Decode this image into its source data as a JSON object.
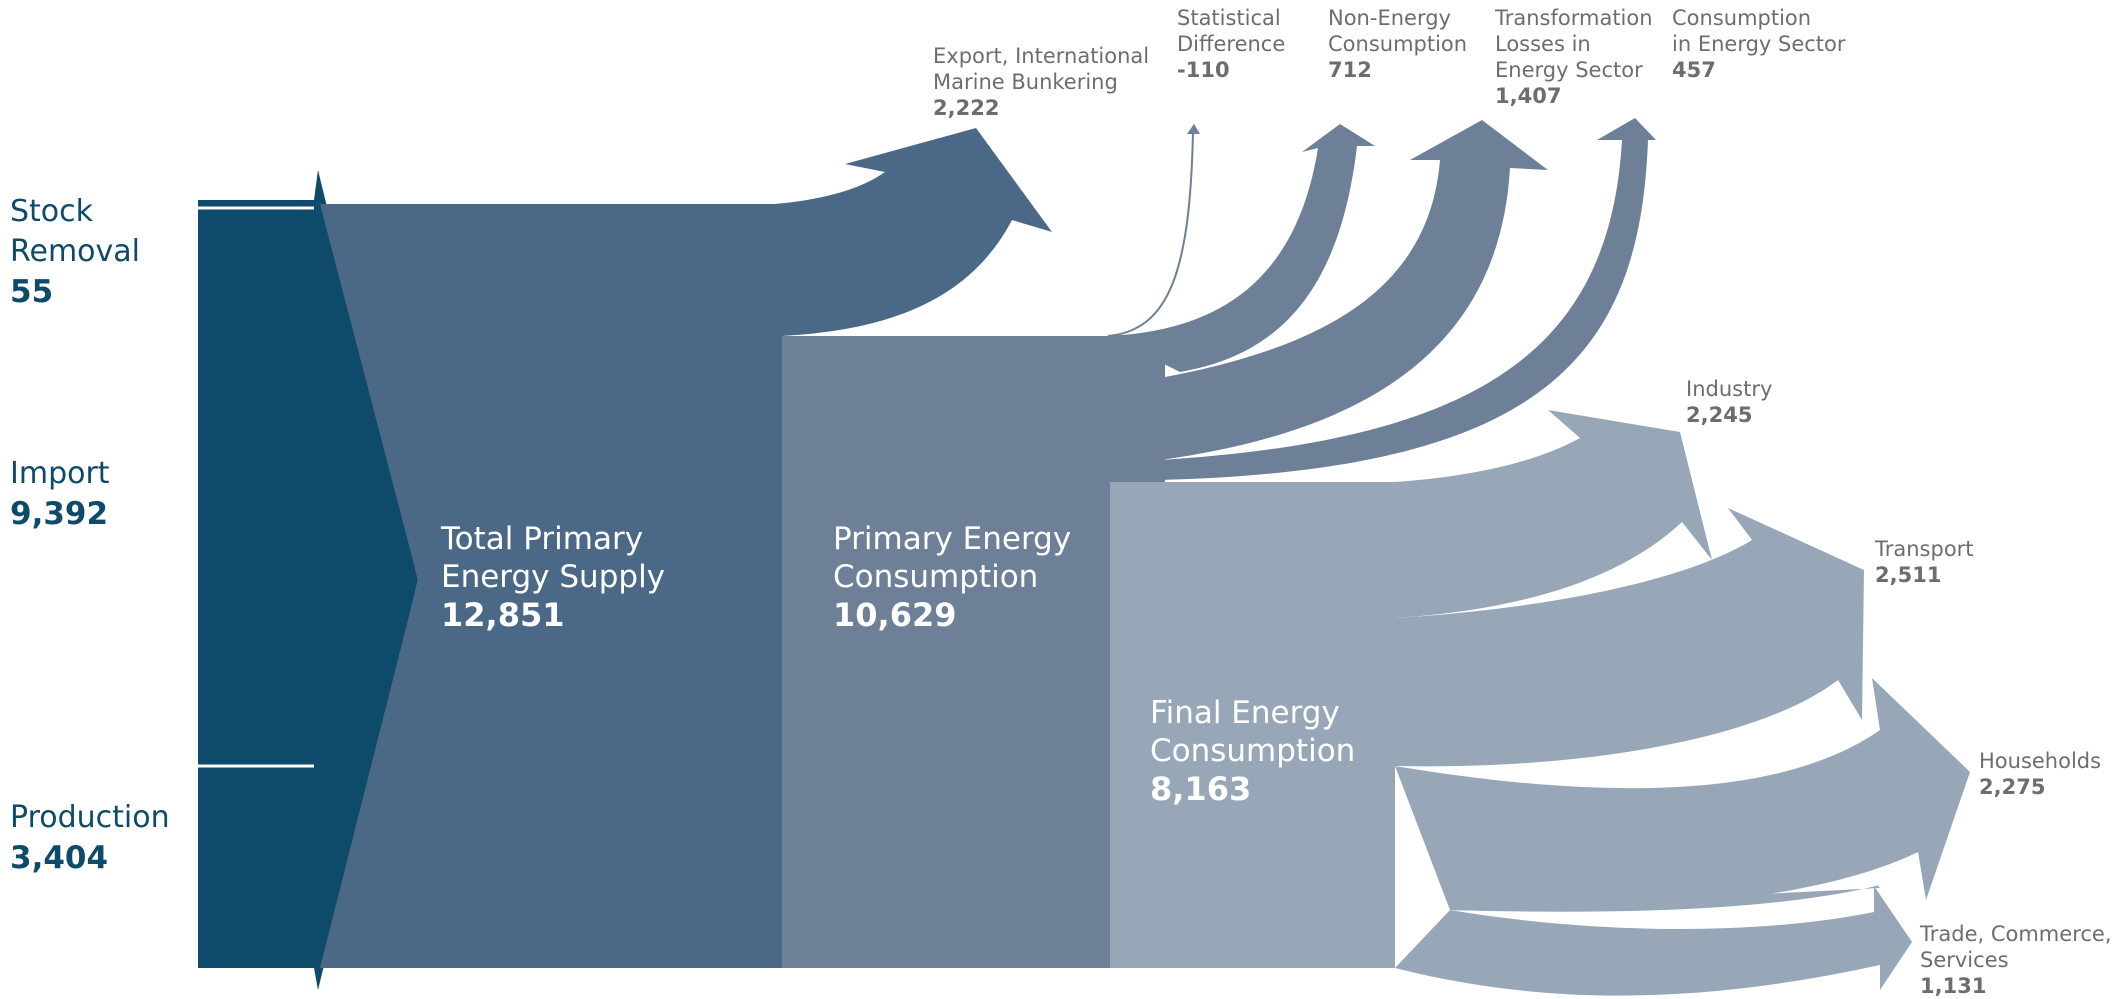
{
  "colors": {
    "inputs": "#0e4a69",
    "total_primary_supply": "#4b6986",
    "primary_consumption": "#6e7f98",
    "final_consumption": "#98a7b8",
    "labels_inputs": "#0e4a69",
    "labels_outputs": "#6d6d6d"
  },
  "inputs": [
    {
      "label": "Stock\nRemoval",
      "value": "55"
    },
    {
      "label": "Import",
      "value": "9,392"
    },
    {
      "label": "Production",
      "value": "3,404"
    }
  ],
  "stages": [
    {
      "label": "Total Primary\nEnergy Supply",
      "value": "12,851"
    },
    {
      "label": "Primary Energy\nConsumption",
      "value": "10,629"
    },
    {
      "label": "Final Energy\nConsumption",
      "value": "8,163"
    }
  ],
  "outputs": [
    {
      "label": "Export, International\nMarine Bunkering",
      "value": "2,222"
    },
    {
      "label": "Statistical\nDifference",
      "value": "-110"
    },
    {
      "label": "Non-Energy\nConsumption",
      "value": "712"
    },
    {
      "label": "Transformation\nLosses in\nEnergy Sector",
      "value": "1,407"
    },
    {
      "label": "Consumption\nin Energy Sector",
      "value": "457"
    },
    {
      "label": "Industry",
      "value": "2,245"
    },
    {
      "label": "Transport",
      "value": "2,511"
    },
    {
      "label": "Households",
      "value": "2,275"
    },
    {
      "label": "Trade, Commerce,\nServices",
      "value": "1,131"
    }
  ]
}
